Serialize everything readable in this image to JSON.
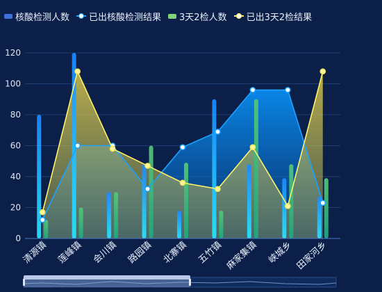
{
  "legend": {
    "items": [
      {
        "label": "核酸检测人数",
        "color": "#3f6fd8",
        "kind": "bar"
      },
      {
        "label": "已出核酸检测结果",
        "color": "#1aa3ff",
        "kind": "line"
      },
      {
        "label": "3天2检人数",
        "color": "#7fd47a",
        "kind": "bar"
      },
      {
        "label": "已出3天2检结果",
        "color": "#fff36b",
        "kind": "line"
      }
    ]
  },
  "chart_data": {
    "type": "bar",
    "categories": [
      "清源镇",
      "莲峰镇",
      "会川镇",
      "路园镇",
      "北寨镇",
      "五竹镇",
      "麻家集镇",
      "峡城乡",
      "田家河乡"
    ],
    "series": [
      {
        "name": "核酸检测人数",
        "kind": "bar",
        "values": [
          80,
          120,
          30,
          48,
          18,
          90,
          48,
          39,
          27
        ]
      },
      {
        "name": "已出核酸检测结果",
        "kind": "line",
        "values": [
          12,
          60,
          60,
          32,
          59,
          69,
          96,
          96,
          23
        ]
      },
      {
        "name": "3天2检人数",
        "kind": "bar",
        "values": [
          12,
          20,
          30,
          60,
          49,
          18,
          90,
          48,
          39
        ]
      },
      {
        "name": "已出3天2检结果",
        "kind": "line",
        "values": [
          17,
          108,
          58,
          47,
          36,
          32,
          59,
          21,
          108
        ]
      }
    ],
    "ylim": [
      0,
      120
    ],
    "yticks": [
      0,
      20,
      40,
      60,
      80,
      100,
      120
    ],
    "grid": true,
    "legend_position": "top-left",
    "data_zoom": true
  }
}
